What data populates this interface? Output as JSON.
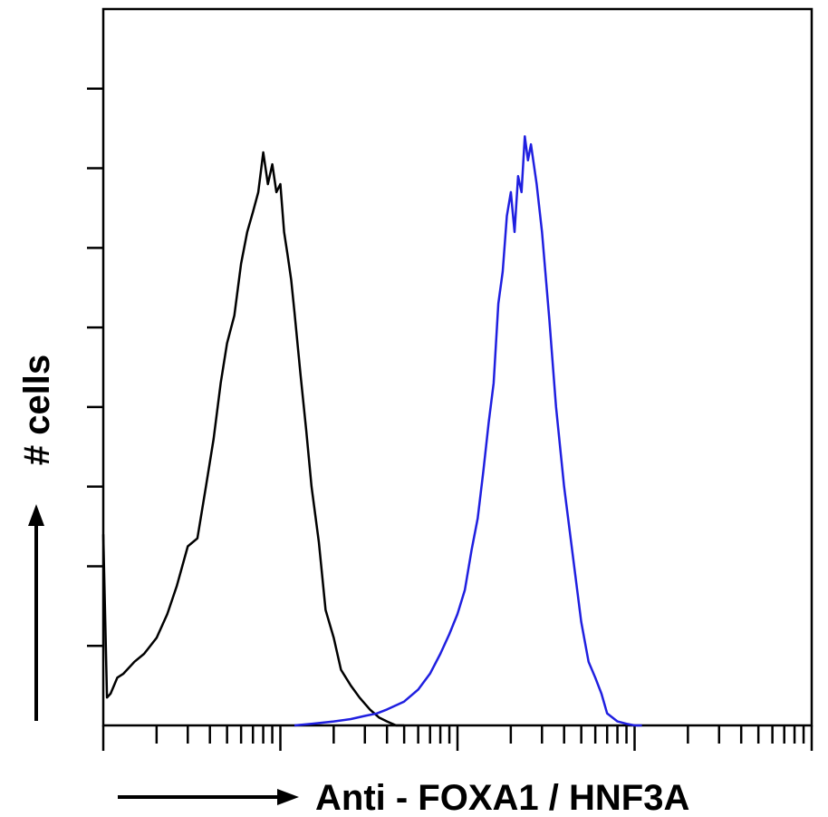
{
  "chart_data": {
    "type": "line",
    "title": "",
    "xlabel": "Anti - FOXA1 / HNF3A",
    "ylabel": "# cells",
    "x_scale": "log",
    "xlim": [
      1,
      10000
    ],
    "ylim": [
      0,
      9
    ],
    "grid": false,
    "legend": "none",
    "series": [
      {
        "color": "#000000",
        "x": [
          1.0,
          1.05,
          1.1,
          1.2,
          1.3,
          1.5,
          1.7,
          2.0,
          2.3,
          2.6,
          3.0,
          3.4,
          3.8,
          4.2,
          4.6,
          5.0,
          5.5,
          6.0,
          6.5,
          7.0,
          7.5,
          8.0,
          8.5,
          9.0,
          9.5,
          10.0,
          10.5,
          11.0,
          11.5,
          12.0,
          13.0,
          14.0,
          15.0,
          16.5,
          18.0,
          20.0,
          22.0,
          25.0,
          28.0,
          32.0,
          36.0,
          40.0,
          45.0,
          50.0
        ],
        "y": [
          2.4,
          0.35,
          0.4,
          0.6,
          0.65,
          0.8,
          0.9,
          1.1,
          1.4,
          1.75,
          2.25,
          2.35,
          3.0,
          3.6,
          4.3,
          4.8,
          5.15,
          5.8,
          6.2,
          6.45,
          6.7,
          7.2,
          6.8,
          7.05,
          6.7,
          6.8,
          6.2,
          5.9,
          5.6,
          5.2,
          4.4,
          3.7,
          3.0,
          2.3,
          1.45,
          1.1,
          0.7,
          0.5,
          0.35,
          0.2,
          0.1,
          0.05,
          0.0,
          0.0
        ]
      },
      {
        "color": "#1f1fe0",
        "x": [
          12.0,
          15.0,
          20.0,
          25.0,
          30.0,
          35.0,
          40.0,
          50.0,
          60.0,
          70.0,
          80.0,
          90.0,
          100.0,
          110.0,
          120.0,
          130.0,
          140.0,
          150.0,
          160.0,
          170.0,
          180.0,
          190.0,
          200.0,
          210.0,
          220.0,
          230.0,
          240.0,
          250.0,
          260.0,
          280.0,
          300.0,
          330.0,
          360.0,
          400.0,
          450.0,
          500.0,
          550.0,
          600.0,
          650.0,
          700.0,
          800.0,
          900.0,
          1000.0,
          1100.0
        ],
        "y": [
          0.0,
          0.02,
          0.05,
          0.08,
          0.12,
          0.15,
          0.2,
          0.3,
          0.45,
          0.65,
          0.9,
          1.15,
          1.4,
          1.7,
          2.2,
          2.6,
          3.2,
          3.8,
          4.3,
          5.3,
          5.7,
          6.4,
          6.7,
          6.2,
          6.9,
          6.7,
          7.4,
          7.1,
          7.3,
          6.8,
          6.2,
          5.1,
          4.0,
          3.0,
          2.1,
          1.3,
          0.8,
          0.6,
          0.4,
          0.15,
          0.05,
          0.02,
          0.0,
          0.0
        ]
      }
    ]
  }
}
